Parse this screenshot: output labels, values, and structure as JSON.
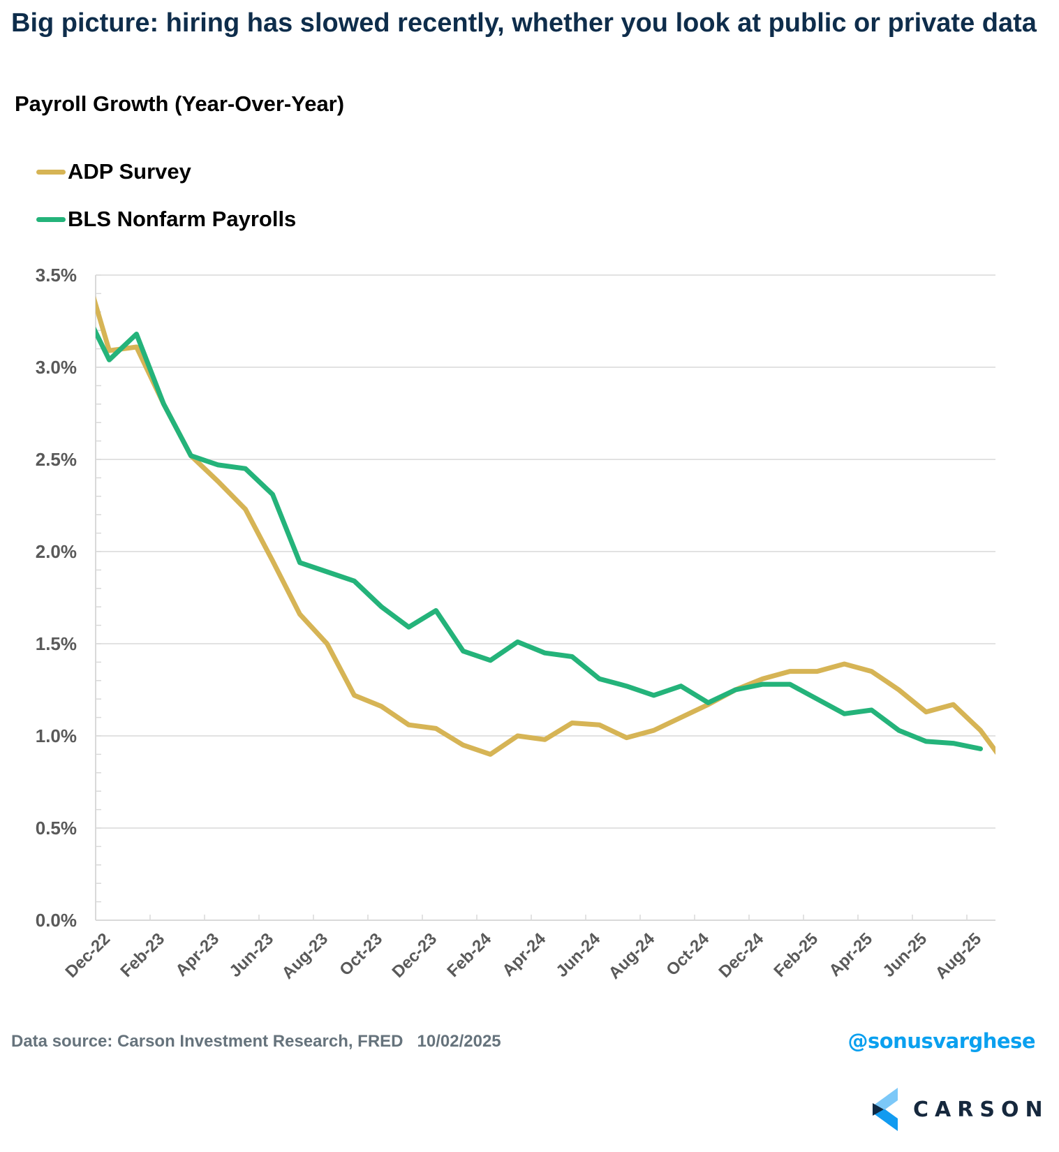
{
  "header": {
    "title": "Big picture: hiring has slowed recently, whether you look at public or private data",
    "subtitle": "Payroll Growth (Year-Over-Year)"
  },
  "footer": {
    "source": "Data source: Carson Investment Research, FRED   10/02/2025",
    "handle": "@sonusvarghese",
    "brand": "CARSON"
  },
  "chart_data": {
    "type": "line",
    "title": "Payroll Growth (Year-Over-Year)",
    "xlabel": "",
    "ylabel": "",
    "ylim": [
      0,
      3.5
    ],
    "yticks": [
      0,
      0.5,
      1.0,
      1.5,
      2.0,
      2.5,
      3.0,
      3.5
    ],
    "ytick_labels": [
      "0.0%",
      "0.5%",
      "1.0%",
      "1.5%",
      "2.0%",
      "2.5%",
      "3.0%",
      "3.5%"
    ],
    "y_minor_step": 0.1,
    "grid": true,
    "legend_position": "top-left",
    "xtick_labels": [
      "Dec-22",
      "Feb-23",
      "Apr-23",
      "Jun-23",
      "Aug-23",
      "Oct-23",
      "Dec-23",
      "Feb-24",
      "Apr-24",
      "Jun-24",
      "Aug-24",
      "Oct-24",
      "Dec-24",
      "Feb-25",
      "Apr-25",
      "Jun-25",
      "Aug-25"
    ],
    "x": [
      "Nov-22",
      "Dec-22",
      "Jan-23",
      "Feb-23",
      "Mar-23",
      "Apr-23",
      "May-23",
      "Jun-23",
      "Jul-23",
      "Aug-23",
      "Sep-23",
      "Oct-23",
      "Nov-23",
      "Dec-23",
      "Jan-24",
      "Feb-24",
      "Mar-24",
      "Apr-24",
      "May-24",
      "Jun-24",
      "Jul-24",
      "Aug-24",
      "Sep-24",
      "Oct-24",
      "Nov-24",
      "Dec-24",
      "Jan-25",
      "Feb-25",
      "Mar-25",
      "Apr-25",
      "May-25",
      "Jun-25",
      "Jul-25",
      "Aug-25",
      "Sep-25"
    ],
    "series": [
      {
        "name": "ADP Survey",
        "color": "#d6b455",
        "values": [
          3.59,
          3.09,
          3.11,
          2.8,
          2.52,
          2.38,
          2.23,
          1.95,
          1.66,
          1.5,
          1.22,
          1.16,
          1.06,
          1.04,
          0.95,
          0.9,
          1.0,
          0.98,
          1.07,
          1.06,
          0.99,
          1.03,
          1.1,
          1.17,
          1.25,
          1.31,
          1.35,
          1.35,
          1.39,
          1.35,
          1.25,
          1.13,
          1.17,
          1.03,
          0.83
        ]
      },
      {
        "name": "BLS Nonfarm Payrolls",
        "color": "#24b37a",
        "values": [
          3.34,
          3.04,
          3.18,
          2.8,
          2.52,
          2.47,
          2.45,
          2.31,
          1.94,
          1.89,
          1.84,
          1.7,
          1.59,
          1.68,
          1.46,
          1.41,
          1.51,
          1.45,
          1.43,
          1.31,
          1.27,
          1.22,
          1.27,
          1.18,
          1.25,
          1.28,
          1.28,
          1.2,
          1.12,
          1.14,
          1.03,
          0.97,
          0.96,
          0.93,
          null
        ]
      }
    ]
  }
}
